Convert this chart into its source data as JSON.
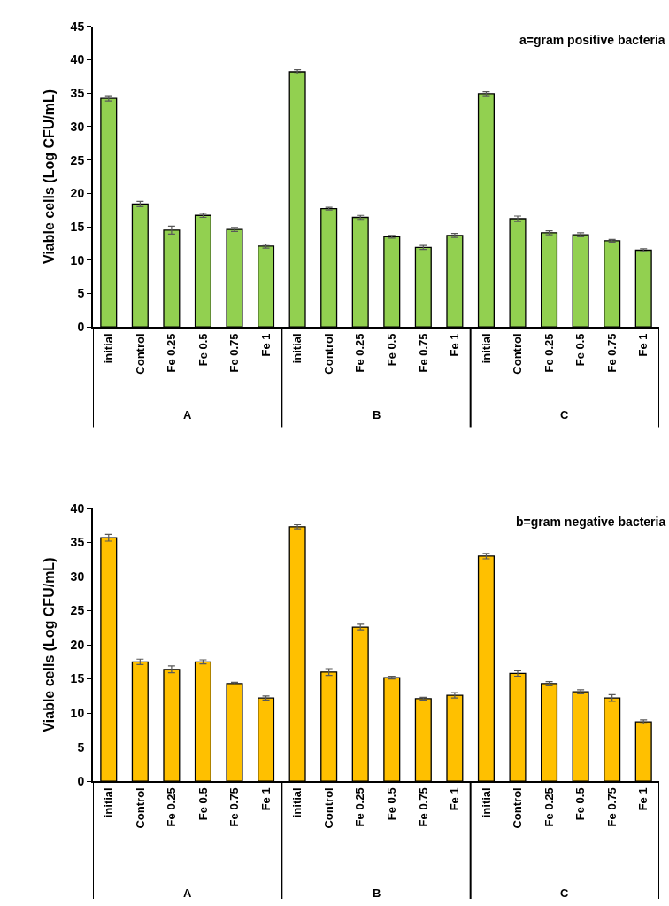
{
  "chart_data": [
    {
      "type": "bar",
      "title": "a=gram positive bacteria",
      "ylabel": "Viable cells (Log CFU/mL)",
      "categories": [
        "initial",
        "Control",
        "Fe 0.25",
        "Fe 0.5",
        "Fe 0.75",
        "Fe 1",
        "initial",
        "Control",
        "Fe 0.25",
        "Fe 0.5",
        "Fe 0.75",
        "Fe 1",
        "initial",
        "Control",
        "Fe 0.25",
        "Fe 0.5",
        "Fe 0.75",
        "Fe 1"
      ],
      "values": [
        34.2,
        18.4,
        14.5,
        16.7,
        14.6,
        12.1,
        38.2,
        17.7,
        16.4,
        13.5,
        11.9,
        13.7,
        34.9,
        16.2,
        14.1,
        13.8,
        12.9,
        11.5
      ],
      "errors": [
        0.4,
        0.4,
        0.6,
        0.3,
        0.3,
        0.3,
        0.3,
        0.2,
        0.3,
        0.2,
        0.3,
        0.3,
        0.3,
        0.4,
        0.3,
        0.3,
        0.2,
        0.2
      ],
      "color": "#92d050",
      "annotations": [
        "A",
        "B",
        "C"
      ],
      "ylim": [
        0,
        45
      ],
      "yticks": [
        0,
        5,
        10,
        15,
        20,
        25,
        30,
        35,
        40,
        45
      ]
    },
    {
      "type": "bar",
      "title": "b=gram negative bacteria",
      "ylabel": "Viable cells (Log CFU/mL)",
      "categories": [
        "initial",
        "Control",
        "Fe 0.25",
        "Fe 0.5",
        "Fe 0.75",
        "Fe 1",
        "initial",
        "Control",
        "Fe 0.25",
        "Fe 0.5",
        "Fe 0.75",
        "Fe 1",
        "initial",
        "Control",
        "Fe 0.25",
        "Fe 0.5",
        "Fe 0.75",
        "Fe 1"
      ],
      "values": [
        35.7,
        17.5,
        16.4,
        17.5,
        14.3,
        12.2,
        37.3,
        16.0,
        22.6,
        15.2,
        12.1,
        12.6,
        33.0,
        15.8,
        14.3,
        13.1,
        12.2,
        8.7
      ],
      "errors": [
        0.5,
        0.4,
        0.5,
        0.3,
        0.2,
        0.3,
        0.3,
        0.5,
        0.4,
        0.2,
        0.2,
        0.4,
        0.4,
        0.4,
        0.3,
        0.3,
        0.5,
        0.3
      ],
      "color": "#ffc000",
      "annotations": [
        "A",
        "B",
        "C"
      ],
      "ylim": [
        0,
        40
      ],
      "yticks": [
        0,
        5,
        10,
        15,
        20,
        25,
        30,
        35,
        40
      ]
    }
  ]
}
